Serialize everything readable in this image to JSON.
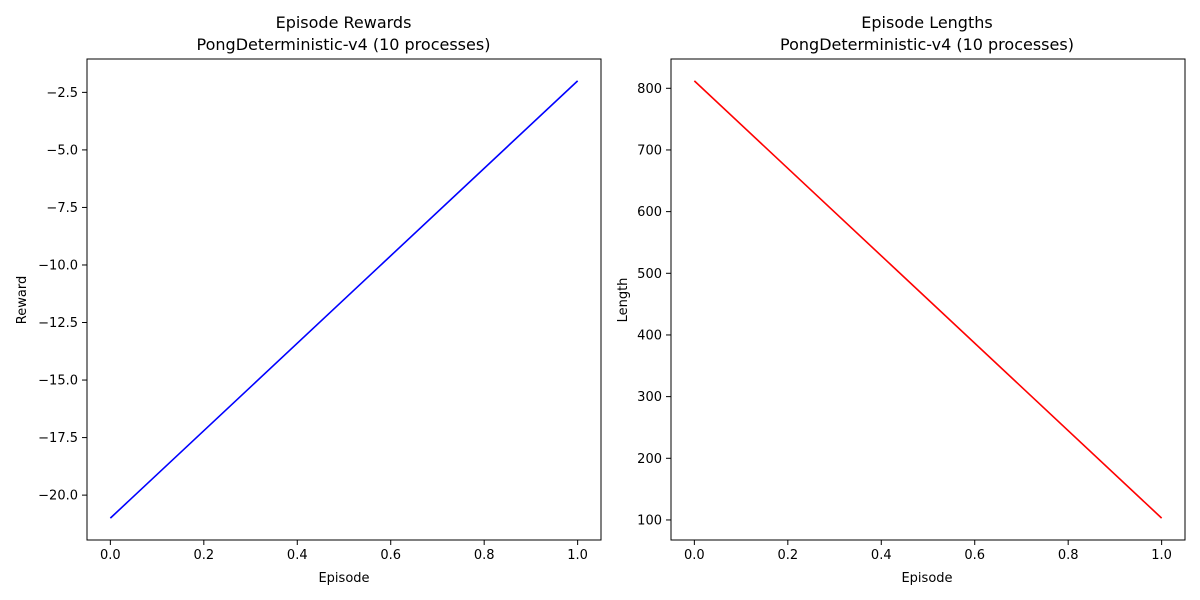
{
  "chart_data": [
    {
      "type": "line",
      "title": "Episode Rewards",
      "subtitle": "PongDeterministic-v4 (10 processes)",
      "xlabel": "Episode",
      "ylabel": "Reward",
      "xlim": [
        -0.05,
        1.05
      ],
      "ylim": [
        -21.95,
        -1.05
      ],
      "xticks": [
        0.0,
        0.2,
        0.4,
        0.6,
        0.8,
        1.0
      ],
      "xtick_labels": [
        "0.0",
        "0.2",
        "0.4",
        "0.6",
        "0.8",
        "1.0"
      ],
      "yticks": [
        -20.0,
        -17.5,
        -15.0,
        -12.5,
        -10.0,
        -7.5,
        -5.0,
        -2.5
      ],
      "ytick_labels": [
        "−20.0",
        "−17.5",
        "−15.0",
        "−12.5",
        "−10.0",
        "−7.5",
        "−5.0",
        "−2.5"
      ],
      "grid": false,
      "series": [
        {
          "x": [
            0,
            1
          ],
          "y": [
            -21,
            -2
          ],
          "color": "#0000ff"
        }
      ]
    },
    {
      "type": "line",
      "title": "Episode Lengths",
      "subtitle": "PongDeterministic-v4 (10 processes)",
      "xlabel": "Episode",
      "ylabel": "Length",
      "xlim": [
        -0.05,
        1.05
      ],
      "ylim": [
        67.5,
        847.5
      ],
      "xticks": [
        0.0,
        0.2,
        0.4,
        0.6,
        0.8,
        1.0
      ],
      "xtick_labels": [
        "0.0",
        "0.2",
        "0.4",
        "0.6",
        "0.8",
        "1.0"
      ],
      "yticks": [
        100,
        200,
        300,
        400,
        500,
        600,
        700,
        800
      ],
      "ytick_labels": [
        "100",
        "200",
        "300",
        "400",
        "500",
        "600",
        "700",
        "800"
      ],
      "grid": false,
      "series": [
        {
          "x": [
            0,
            1
          ],
          "y": [
            812,
            103
          ],
          "color": "#ff0000"
        }
      ]
    }
  ]
}
